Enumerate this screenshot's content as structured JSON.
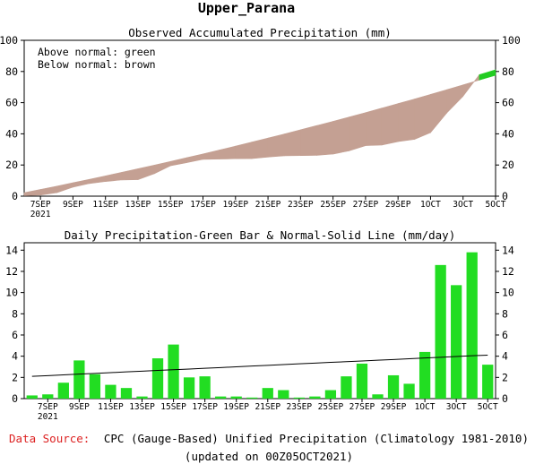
{
  "page_title": "Upper_Parana",
  "footer": {
    "source_label": "Data Source:",
    "source_text": "CPC (Gauge-Based) Unified Precipitation (Climatology 1981-2010)",
    "updated": "(updated on 00Z05OCT2021)"
  },
  "colors": {
    "accum_fill": "#c4a093",
    "bar_fill": "#22dd22",
    "source_label": "#dd2222"
  },
  "chart_data": [
    {
      "type": "area",
      "title": "Observed Accumulated Precipitation (mm)",
      "legend": [
        "Above normal: green",
        "Below normal: brown"
      ],
      "legend_position": "top-left",
      "x_ticks": [
        "7SEP",
        "9SEP",
        "11SEP",
        "13SEP",
        "15SEP",
        "17SEP",
        "19SEP",
        "21SEP",
        "23SEP",
        "25SEP",
        "27SEP",
        "29SEP",
        "1OCT",
        "3OCT",
        "5OCT"
      ],
      "x_year_label": "2021",
      "y_ticks": [
        0,
        20,
        40,
        60,
        80,
        100
      ],
      "ylim": [
        0,
        100
      ],
      "grid": false,
      "dates": [
        "6SEP",
        "7SEP",
        "8SEP",
        "9SEP",
        "10SEP",
        "11SEP",
        "12SEP",
        "13SEP",
        "14SEP",
        "15SEP",
        "16SEP",
        "17SEP",
        "18SEP",
        "19SEP",
        "20SEP",
        "21SEP",
        "22SEP",
        "23SEP",
        "24SEP",
        "25SEP",
        "26SEP",
        "27SEP",
        "28SEP",
        "29SEP",
        "30SEP",
        "1OCT",
        "2OCT",
        "3OCT",
        "4OCT",
        "5OCT"
      ],
      "series": [
        {
          "name": "Observed",
          "values": [
            0.3,
            0.7,
            2.2,
            5.8,
            8.1,
            9.4,
            10.4,
            10.6,
            14.4,
            19.5,
            21.5,
            23.6,
            23.8,
            24.0,
            24.1,
            25.1,
            25.9,
            26.0,
            26.2,
            27.0,
            29.1,
            32.4,
            32.8,
            35.0,
            36.4,
            40.8,
            53.4,
            64.1,
            77.9,
            81.1
          ]
        },
        {
          "name": "Normal",
          "values": [
            2.2,
            4.3,
            6.4,
            8.6,
            10.8,
            13.0,
            15.3,
            17.6,
            19.9,
            22.3,
            24.7,
            27.1,
            29.6,
            32.1,
            34.7,
            37.3,
            39.9,
            42.6,
            45.3,
            48.0,
            50.8,
            53.6,
            56.5,
            59.4,
            62.3,
            65.3,
            68.3,
            71.4,
            74.5,
            77.6
          ]
        }
      ]
    },
    {
      "type": "bar",
      "title": "Daily Precipitation-Green Bar & Normal-Solid Line (mm/day)",
      "x_ticks": [
        "7SEP",
        "9SEP",
        "11SEP",
        "13SEP",
        "15SEP",
        "17SEP",
        "19SEP",
        "21SEP",
        "23SEP",
        "25SEP",
        "27SEP",
        "29SEP",
        "1OCT",
        "3OCT",
        "5OCT"
      ],
      "x_year_label": "2021",
      "y_ticks": [
        0,
        2,
        4,
        6,
        8,
        10,
        12,
        14
      ],
      "ylim": [
        0,
        14.7
      ],
      "grid": false,
      "dates": [
        "6SEP",
        "7SEP",
        "8SEP",
        "9SEP",
        "10SEP",
        "11SEP",
        "12SEP",
        "13SEP",
        "14SEP",
        "15SEP",
        "16SEP",
        "17SEP",
        "18SEP",
        "19SEP",
        "20SEP",
        "21SEP",
        "22SEP",
        "23SEP",
        "24SEP",
        "25SEP",
        "26SEP",
        "27SEP",
        "28SEP",
        "29SEP",
        "30SEP",
        "1OCT",
        "2OCT",
        "3OCT",
        "4OCT",
        "5OCT"
      ],
      "series": [
        {
          "name": "Daily",
          "values": [
            0.3,
            0.4,
            1.5,
            3.6,
            2.3,
            1.3,
            1.0,
            0.2,
            3.8,
            5.1,
            2.0,
            2.1,
            0.2,
            0.2,
            0.1,
            1.0,
            0.8,
            0.1,
            0.2,
            0.8,
            2.1,
            3.3,
            0.4,
            2.2,
            1.4,
            4.4,
            12.6,
            10.7,
            13.8,
            3.2
          ]
        },
        {
          "name": "Normal",
          "values": [
            2.1,
            2.17,
            2.24,
            2.31,
            2.38,
            2.45,
            2.52,
            2.59,
            2.66,
            2.72,
            2.79,
            2.86,
            2.93,
            3.0,
            3.07,
            3.14,
            3.21,
            3.28,
            3.35,
            3.42,
            3.48,
            3.55,
            3.62,
            3.69,
            3.76,
            3.83,
            3.9,
            3.97,
            4.04,
            4.1
          ]
        }
      ]
    }
  ]
}
